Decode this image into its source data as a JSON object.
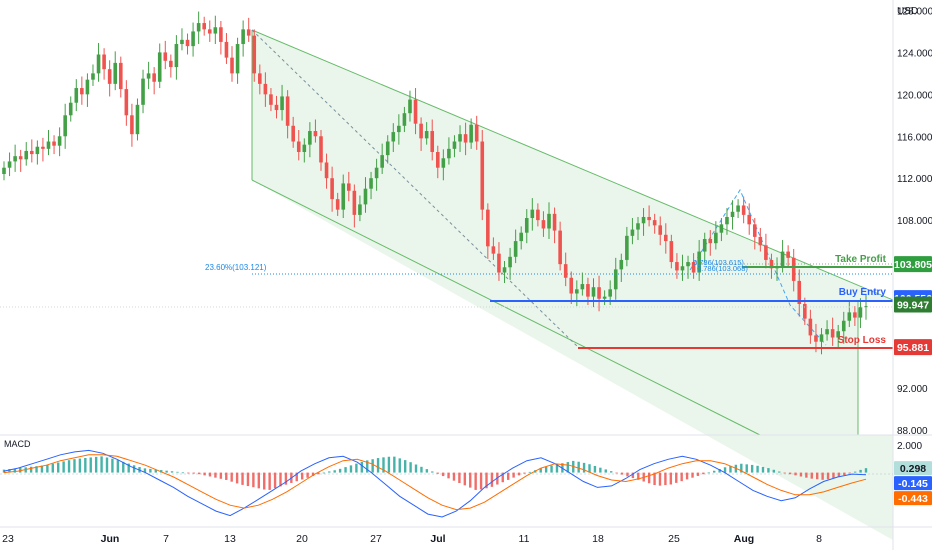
{
  "chart_data": {
    "type": "candlestick",
    "currency_label": "USD",
    "y_axis_ticks": [
      "128.000",
      "124.000",
      "120.000",
      "116.000",
      "112.000",
      "108.000",
      "92.000",
      "88.000"
    ],
    "ylim": [
      87.5,
      129
    ],
    "x_axis_ticks": [
      "23",
      "Jun",
      "7",
      "13",
      "20",
      "27",
      "Jul",
      "11",
      "18",
      "25",
      "Aug",
      "8"
    ],
    "bold_x_ticks": [
      "Jun",
      "Jul",
      "Aug"
    ],
    "candles_close": [
      113.0,
      113.6,
      114.1,
      113.8,
      114.6,
      114.3,
      115.0,
      114.8,
      115.5,
      115.1,
      116.0,
      118.0,
      119.2,
      120.6,
      120.0,
      121.4,
      122.0,
      123.8,
      122.4,
      121.0,
      123.0,
      120.5,
      118.0,
      116.2,
      119.0,
      121.5,
      122.0,
      121.2,
      124.0,
      123.2,
      122.6,
      124.8,
      125.2,
      124.6,
      126.0,
      126.8,
      126.2,
      125.8,
      126.4,
      125.0,
      123.5,
      122.0,
      124.8,
      126.2,
      125.6,
      122.0,
      121.0,
      120.0,
      119.0,
      118.5,
      119.8,
      117.0,
      115.5,
      114.5,
      115.2,
      116.5,
      116.0,
      113.5,
      112.0,
      110.0,
      109.0,
      111.5,
      110.8,
      108.5,
      109.5,
      111.0,
      112.0,
      113.0,
      114.2,
      115.5,
      116.4,
      117.0,
      118.2,
      119.5,
      117.2,
      115.8,
      116.5,
      114.5,
      113.0,
      113.9,
      114.8,
      115.5,
      116.2,
      115.4,
      117.1,
      115.5,
      109.0,
      105.5,
      104.8,
      103.0,
      103.5,
      104.5,
      106.0,
      106.8,
      108.2,
      109.0,
      108.0,
      107.2,
      108.6,
      107.0,
      103.8,
      102.5,
      101.0,
      101.4,
      101.9,
      100.7,
      101.6,
      100.5,
      100.7,
      101.4,
      103.3,
      104.2,
      106.5,
      107.1,
      107.7,
      108.3,
      108.0,
      107.5,
      106.6,
      106.0,
      104.0,
      103.2,
      103.6,
      104.0,
      103.0,
      105.0,
      106.2,
      105.8,
      106.8,
      107.6,
      108.3,
      108.8,
      109.4,
      108.5,
      107.6,
      106.4,
      105.6,
      104.2,
      103.4,
      103.6,
      105.0,
      104.4,
      102.2,
      100.0,
      98.6,
      97.0,
      96.4,
      97.1,
      97.6,
      96.8,
      97.4,
      98.4,
      99.2,
      98.7,
      99.7,
      99.8
    ],
    "macd": {
      "label": "MACD",
      "y_axis_ticks": [
        "2.000"
      ],
      "ylim": [
        -3.2,
        2.2
      ],
      "histogram_trend": [
        0.2,
        0.3,
        0.4,
        0.5,
        0.7,
        0.9,
        1.0,
        1.1,
        0.9,
        0.6,
        0.3,
        0.2,
        0.1,
        0.0,
        -0.1,
        -0.3,
        -0.5,
        -0.8,
        -1.0,
        -1.2,
        -0.9,
        -0.6,
        -0.3,
        0.0,
        0.2,
        0.5,
        0.8,
        1.0,
        1.1,
        0.8,
        0.4,
        0.0,
        -0.4,
        -0.8,
        -1.2,
        -1.0,
        -0.6,
        -0.2,
        0.1,
        0.4,
        0.6,
        0.8,
        0.6,
        0.3,
        0.0,
        -0.3,
        -0.6,
        -0.9,
        -0.8,
        -0.5,
        -0.2,
        0.1,
        0.4,
        0.6,
        0.5,
        0.3,
        0.0,
        -0.2,
        -0.4,
        -0.5,
        -0.3,
        0.0,
        0.3
      ],
      "macd_line": [
        0.1,
        0.3,
        0.6,
        0.9,
        1.2,
        1.4,
        1.5,
        1.3,
        0.9,
        0.4,
        0.0,
        -0.5,
        -1.0,
        -1.6,
        -2.1,
        -2.6,
        -2.9,
        -2.4,
        -1.8,
        -1.2,
        -0.6,
        0.1,
        0.6,
        1.0,
        1.1,
        0.7,
        0.0,
        -0.8,
        -1.6,
        -2.2,
        -2.8,
        -3.0,
        -2.6,
        -1.9,
        -1.0,
        -0.3,
        0.3,
        0.8,
        1.0,
        0.6,
        0.0,
        -0.6,
        -1.0,
        -0.9,
        -0.4,
        0.2,
        0.6,
        0.9,
        1.1,
        0.9,
        0.5,
        0.0,
        -0.6,
        -1.2,
        -1.6,
        -1.9,
        -1.7,
        -1.1,
        -0.6,
        -0.3,
        -0.1,
        -0.145
      ],
      "signal_line": [
        0.0,
        0.1,
        0.3,
        0.5,
        0.8,
        1.0,
        1.2,
        1.2,
        1.1,
        0.8,
        0.5,
        0.1,
        -0.3,
        -0.8,
        -1.3,
        -1.8,
        -2.2,
        -2.4,
        -2.2,
        -1.8,
        -1.3,
        -0.7,
        -0.1,
        0.4,
        0.8,
        0.9,
        0.6,
        0.1,
        -0.5,
        -1.1,
        -1.7,
        -2.2,
        -2.5,
        -2.4,
        -2.0,
        -1.4,
        -0.8,
        -0.2,
        0.3,
        0.6,
        0.5,
        0.2,
        -0.2,
        -0.5,
        -0.6,
        -0.4,
        -0.1,
        0.3,
        0.6,
        0.8,
        0.8,
        0.6,
        0.2,
        -0.3,
        -0.8,
        -1.2,
        -1.5,
        -1.5,
        -1.3,
        -1.0,
        -0.7,
        -0.443
      ],
      "tags": [
        {
          "text": "0.298",
          "value": 0.298,
          "color": "#b2dfdb",
          "text_color": "#131722"
        },
        {
          "text": "-0.145",
          "value": -0.145,
          "color": "#2962ff",
          "text_color": "#ffffff"
        },
        {
          "text": "-0.443",
          "value": -0.443,
          "color": "#ff6d00",
          "text_color": "#ffffff"
        }
      ]
    },
    "price_tags": [
      {
        "text": "103.805",
        "value": 103.805,
        "color": "#2e9e3f",
        "text_color": "#ffffff"
      },
      {
        "text": "100.556",
        "value": 100.556,
        "color": "#2962ff",
        "text_color": "#ffffff"
      },
      {
        "text": "99.947",
        "value": 99.947,
        "color": "#2e7d32",
        "text_color": "#ffffff"
      },
      {
        "text": "95.881",
        "value": 95.881,
        "color": "#e53935",
        "text_color": "#ffffff"
      }
    ],
    "levels": [
      {
        "label": "Take Profit",
        "value": 103.805,
        "color": "#43a047"
      },
      {
        "label": "Buy Entry",
        "value": 100.556,
        "color": "#2962ff"
      },
      {
        "label": "Stop Loss",
        "value": 95.881,
        "color": "#e53935"
      }
    ],
    "fib_labels": [
      {
        "text": "23.60%(103.121)",
        "value": 103.121
      },
      {
        "text": "0.786(103.615)",
        "value": 103.615
      },
      {
        "text": "0.786(103.068)",
        "value": 103.068
      }
    ],
    "colors": {
      "up": "#26a69a",
      "up_strong": "#43a047",
      "down": "#ef5350",
      "channel": "#4caf50",
      "channel_fill": "#e8f5e9"
    }
  }
}
